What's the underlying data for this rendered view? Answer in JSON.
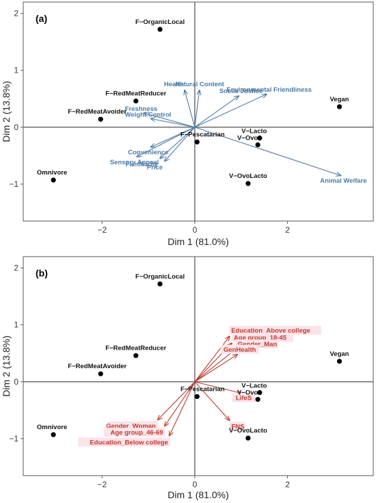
{
  "chart_data": [
    {
      "type": "scatter",
      "panel": "(a)",
      "xlabel": "Dim 1 (81.0%)",
      "ylabel": "Dim 2 (13.8%)",
      "xlim": [
        -3.7,
        3.85
      ],
      "ylim": [
        -1.65,
        2.2
      ],
      "xticks": [
        -2,
        0,
        2
      ],
      "yticks": [
        -1,
        0,
        1,
        2
      ],
      "grid": false,
      "individuals": [
        {
          "label": "F−OrganicLocal",
          "x": -0.75,
          "y": 1.72
        },
        {
          "label": "F−RedMeatReducer",
          "x": -1.27,
          "y": 0.46
        },
        {
          "label": "F−RedMeatAvoider",
          "x": -2.03,
          "y": 0.14
        },
        {
          "label": "Omnivore",
          "x": -3.05,
          "y": -0.93
        },
        {
          "label": "F−Pescatarian",
          "x": 0.05,
          "y": -0.26
        },
        {
          "label": "V−Lacto",
          "x": 1.4,
          "y": -0.19
        },
        {
          "label": "V−Ovo",
          "x": 1.36,
          "y": -0.31
        },
        {
          "label": "V−OvoLacto",
          "x": 1.15,
          "y": -0.99
        },
        {
          "label": "Vegan",
          "x": 3.12,
          "y": 0.36
        }
      ],
      "variables_color": "#4a7aa8",
      "variables": [
        {
          "label": "Health",
          "x": -0.22,
          "y": 0.65
        },
        {
          "label": "Natural Content",
          "x": 0.1,
          "y": 0.65
        },
        {
          "label": "Social Justice",
          "x": 0.95,
          "y": 0.55
        },
        {
          "label": "Environmental Friendliness",
          "x": 1.55,
          "y": 0.58
        },
        {
          "label": "Freshness",
          "x": -1.1,
          "y": 0.25
        },
        {
          "label": "Weight Control",
          "x": -0.95,
          "y": 0.15
        },
        {
          "label": "Convenience",
          "x": -0.95,
          "y": -0.35
        },
        {
          "label": "Sensory Appeal",
          "x": -1.25,
          "y": -0.52
        },
        {
          "label": "Familiarity",
          "x": -0.75,
          "y": -0.55
        },
        {
          "label": "Price",
          "x": -0.65,
          "y": -0.6
        },
        {
          "label": "Animal Welfare",
          "x": 3.15,
          "y": -0.85
        }
      ]
    },
    {
      "type": "scatter",
      "panel": "(b)",
      "xlabel": "Dim 1 (81.0%)",
      "ylabel": "Dim 2 (13.8%)",
      "xlim": [
        -3.7,
        3.85
      ],
      "ylim": [
        -1.65,
        2.2
      ],
      "xticks": [
        -2,
        0,
        2
      ],
      "yticks": [
        -1,
        0,
        1,
        2
      ],
      "grid": false,
      "individuals": [
        {
          "label": "F−OrganicLocal",
          "x": -0.75,
          "y": 1.72
        },
        {
          "label": "F−RedMeatReducer",
          "x": -1.27,
          "y": 0.46
        },
        {
          "label": "F−RedMeatAvoider",
          "x": -2.03,
          "y": 0.14
        },
        {
          "label": "Omnivore",
          "x": -3.05,
          "y": -0.93
        },
        {
          "label": "F−Pescatarian",
          "x": 0.05,
          "y": -0.26
        },
        {
          "label": "V−Lacto",
          "x": 1.4,
          "y": -0.19
        },
        {
          "label": "V−Ovo",
          "x": 1.36,
          "y": -0.31
        },
        {
          "label": "V−OvoLacto",
          "x": 1.15,
          "y": -0.99
        },
        {
          "label": "Vegan",
          "x": 3.12,
          "y": 0.36
        }
      ],
      "variables_color": "#c0392b",
      "variables": [
        {
          "label": "Education_Above college",
          "x": 0.75,
          "y": 0.8
        },
        {
          "label": "Age group_18-45",
          "x": 0.8,
          "y": 0.68
        },
        {
          "label": "Gender_Man",
          "x": 0.88,
          "y": 0.57
        },
        {
          "label": "GenHealth",
          "x": 0.92,
          "y": 0.48
        },
        {
          "label": "LifeS",
          "x": 1.0,
          "y": -0.2
        },
        {
          "label": "FNS",
          "x": 0.75,
          "y": -0.68
        },
        {
          "label": "Gender_Woman",
          "x": -0.8,
          "y": -0.67
        },
        {
          "label": "Age group_46-69",
          "x": -0.65,
          "y": -0.78
        },
        {
          "label": "Education_Below college",
          "x": -0.55,
          "y": -0.95
        }
      ]
    }
  ]
}
